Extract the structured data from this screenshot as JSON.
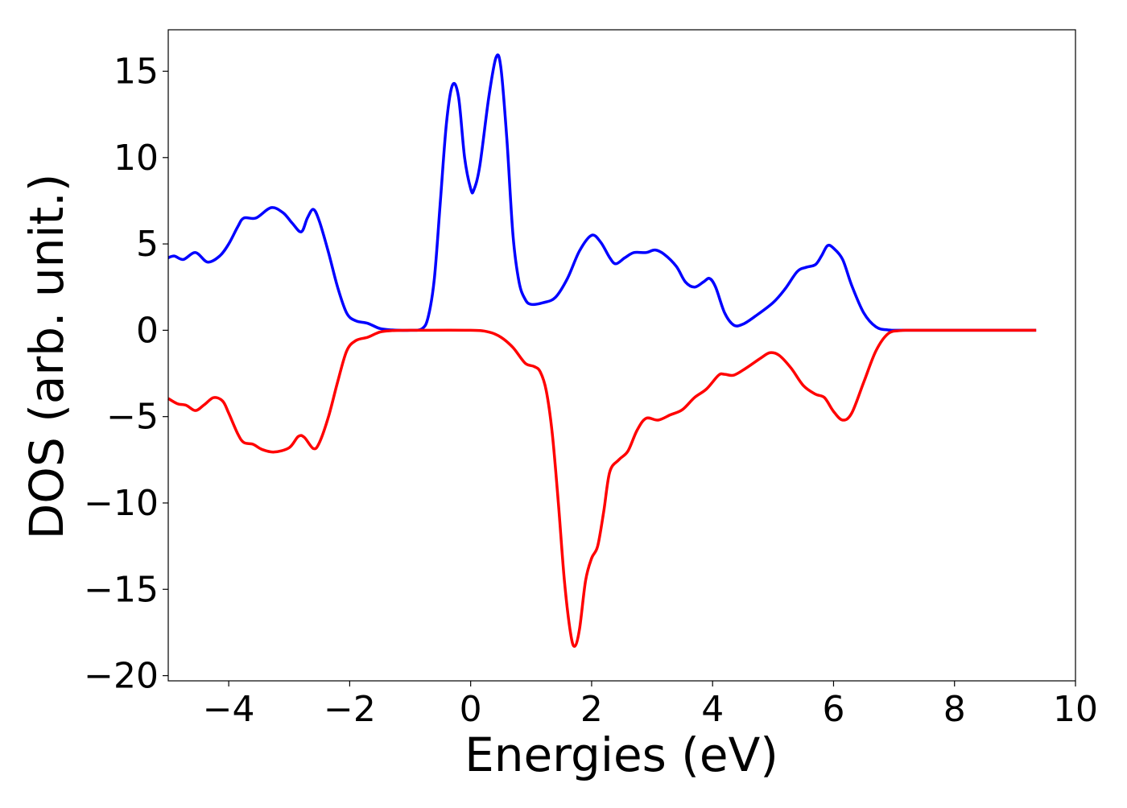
{
  "chart_data": {
    "type": "line",
    "title": "",
    "xlabel": "Energies (eV)",
    "ylabel": "DOS (arb. unit.)",
    "xlim": [
      -5,
      10
    ],
    "ylim": [
      -20.3,
      17.4
    ],
    "grid": false,
    "legend": "none",
    "x_ticks": [
      -4,
      -2,
      0,
      2,
      4,
      6,
      8,
      10
    ],
    "x_tick_labels": [
      "−4",
      "−2",
      "0",
      "2",
      "4",
      "6",
      "8",
      "10"
    ],
    "y_ticks": [
      -20,
      -15,
      -10,
      -5,
      0,
      5,
      10,
      15
    ],
    "y_tick_labels": [
      "−20",
      "−15",
      "−10",
      "−5",
      "0",
      "5",
      "10",
      "15"
    ],
    "series": [
      {
        "color": "#0000ff",
        "points": [
          [
            -5.0,
            4.2
          ],
          [
            -4.9,
            4.3
          ],
          [
            -4.75,
            4.1
          ],
          [
            -4.55,
            4.5
          ],
          [
            -4.35,
            3.95
          ],
          [
            -4.15,
            4.3
          ],
          [
            -4.0,
            5.0
          ],
          [
            -3.85,
            6.0
          ],
          [
            -3.75,
            6.5
          ],
          [
            -3.55,
            6.5
          ],
          [
            -3.3,
            7.1
          ],
          [
            -3.1,
            6.8
          ],
          [
            -2.95,
            6.2
          ],
          [
            -2.8,
            5.7
          ],
          [
            -2.7,
            6.5
          ],
          [
            -2.6,
            7.0
          ],
          [
            -2.5,
            6.3
          ],
          [
            -2.35,
            4.5
          ],
          [
            -2.2,
            2.5
          ],
          [
            -2.05,
            1.0
          ],
          [
            -1.9,
            0.55
          ],
          [
            -1.7,
            0.4
          ],
          [
            -1.5,
            0.1
          ],
          [
            -1.3,
            0.02
          ],
          [
            -1.0,
            0.0
          ],
          [
            -0.8,
            0.1
          ],
          [
            -0.7,
            0.8
          ],
          [
            -0.6,
            3.0
          ],
          [
            -0.5,
            7.5
          ],
          [
            -0.4,
            12.0
          ],
          [
            -0.3,
            14.2
          ],
          [
            -0.2,
            13.5
          ],
          [
            -0.1,
            10.0
          ],
          [
            0.0,
            8.2
          ],
          [
            0.05,
            8.1
          ],
          [
            0.15,
            9.5
          ],
          [
            0.3,
            13.5
          ],
          [
            0.42,
            15.8
          ],
          [
            0.5,
            15.2
          ],
          [
            0.6,
            11.0
          ],
          [
            0.7,
            5.5
          ],
          [
            0.8,
            2.8
          ],
          [
            0.9,
            1.8
          ],
          [
            1.0,
            1.5
          ],
          [
            1.2,
            1.6
          ],
          [
            1.4,
            1.9
          ],
          [
            1.6,
            3.0
          ],
          [
            1.8,
            4.6
          ],
          [
            2.0,
            5.5
          ],
          [
            2.15,
            5.1
          ],
          [
            2.3,
            4.2
          ],
          [
            2.4,
            3.85
          ],
          [
            2.55,
            4.2
          ],
          [
            2.7,
            4.5
          ],
          [
            2.9,
            4.5
          ],
          [
            3.05,
            4.65
          ],
          [
            3.2,
            4.4
          ],
          [
            3.4,
            3.7
          ],
          [
            3.55,
            2.8
          ],
          [
            3.7,
            2.5
          ],
          [
            3.85,
            2.8
          ],
          [
            3.95,
            3.0
          ],
          [
            4.05,
            2.5
          ],
          [
            4.2,
            1.0
          ],
          [
            4.35,
            0.3
          ],
          [
            4.5,
            0.35
          ],
          [
            4.7,
            0.8
          ],
          [
            5.0,
            1.6
          ],
          [
            5.2,
            2.4
          ],
          [
            5.4,
            3.4
          ],
          [
            5.55,
            3.65
          ],
          [
            5.7,
            3.8
          ],
          [
            5.8,
            4.3
          ],
          [
            5.9,
            4.9
          ],
          [
            6.0,
            4.75
          ],
          [
            6.15,
            4.1
          ],
          [
            6.3,
            2.6
          ],
          [
            6.5,
            1.0
          ],
          [
            6.7,
            0.2
          ],
          [
            6.9,
            0.02
          ],
          [
            7.2,
            0.0
          ],
          [
            8.0,
            0.0
          ],
          [
            9.0,
            0.0
          ],
          [
            9.35,
            0.0
          ]
        ]
      },
      {
        "color": "#ff0000",
        "points": [
          [
            -5.0,
            -3.95
          ],
          [
            -4.85,
            -4.25
          ],
          [
            -4.7,
            -4.35
          ],
          [
            -4.55,
            -4.65
          ],
          [
            -4.4,
            -4.3
          ],
          [
            -4.25,
            -3.9
          ],
          [
            -4.1,
            -4.1
          ],
          [
            -4.0,
            -4.8
          ],
          [
            -3.85,
            -6.0
          ],
          [
            -3.75,
            -6.5
          ],
          [
            -3.6,
            -6.6
          ],
          [
            -3.45,
            -6.9
          ],
          [
            -3.25,
            -7.05
          ],
          [
            -3.0,
            -6.8
          ],
          [
            -2.85,
            -6.15
          ],
          [
            -2.75,
            -6.2
          ],
          [
            -2.6,
            -6.85
          ],
          [
            -2.5,
            -6.5
          ],
          [
            -2.35,
            -5.0
          ],
          [
            -2.2,
            -3.0
          ],
          [
            -2.05,
            -1.2
          ],
          [
            -1.9,
            -0.6
          ],
          [
            -1.7,
            -0.4
          ],
          [
            -1.5,
            -0.1
          ],
          [
            -1.3,
            -0.02
          ],
          [
            -1.0,
            0.0
          ],
          [
            0.0,
            0.0
          ],
          [
            0.3,
            -0.1
          ],
          [
            0.5,
            -0.4
          ],
          [
            0.7,
            -1.0
          ],
          [
            0.9,
            -1.9
          ],
          [
            1.05,
            -2.1
          ],
          [
            1.15,
            -2.4
          ],
          [
            1.25,
            -3.5
          ],
          [
            1.35,
            -6.0
          ],
          [
            1.45,
            -10.0
          ],
          [
            1.55,
            -14.5
          ],
          [
            1.65,
            -17.5
          ],
          [
            1.72,
            -18.3
          ],
          [
            1.8,
            -17.3
          ],
          [
            1.9,
            -14.5
          ],
          [
            2.0,
            -13.2
          ],
          [
            2.1,
            -12.5
          ],
          [
            2.2,
            -10.5
          ],
          [
            2.3,
            -8.2
          ],
          [
            2.45,
            -7.5
          ],
          [
            2.6,
            -7.0
          ],
          [
            2.75,
            -5.8
          ],
          [
            2.9,
            -5.1
          ],
          [
            3.1,
            -5.2
          ],
          [
            3.3,
            -4.9
          ],
          [
            3.5,
            -4.6
          ],
          [
            3.7,
            -3.9
          ],
          [
            3.9,
            -3.4
          ],
          [
            4.1,
            -2.6
          ],
          [
            4.2,
            -2.55
          ],
          [
            4.35,
            -2.6
          ],
          [
            4.55,
            -2.2
          ],
          [
            4.8,
            -1.6
          ],
          [
            4.95,
            -1.3
          ],
          [
            5.1,
            -1.45
          ],
          [
            5.3,
            -2.2
          ],
          [
            5.5,
            -3.2
          ],
          [
            5.7,
            -3.7
          ],
          [
            5.85,
            -3.9
          ],
          [
            6.0,
            -4.7
          ],
          [
            6.15,
            -5.2
          ],
          [
            6.3,
            -4.8
          ],
          [
            6.5,
            -3.0
          ],
          [
            6.7,
            -1.2
          ],
          [
            6.9,
            -0.2
          ],
          [
            7.1,
            -0.02
          ],
          [
            7.3,
            0.0
          ],
          [
            8.0,
            0.0
          ],
          [
            9.0,
            0.0
          ],
          [
            9.35,
            0.0
          ]
        ]
      }
    ]
  }
}
